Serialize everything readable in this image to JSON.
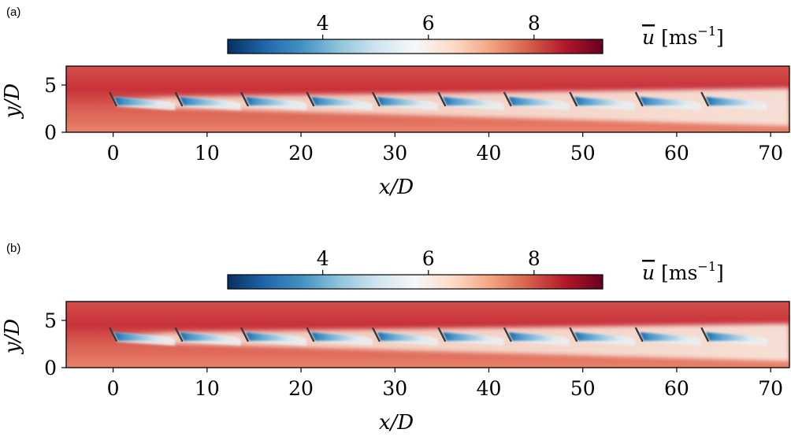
{
  "chart_data": [
    {
      "type": "heatmap",
      "panel_label": "(a)",
      "xlabel": "x/D",
      "ylabel": "y/D",
      "x_ticks": [
        0,
        10,
        20,
        30,
        40,
        50,
        60,
        70
      ],
      "y_ticks": [
        0,
        5
      ],
      "xlim": [
        -5,
        72
      ],
      "ylim": [
        0,
        7
      ],
      "colorbar": {
        "label_symbol": "u",
        "label_units": "[ms",
        "label_exp": "−1",
        "label_close": "]",
        "ticks": [
          4,
          6,
          8
        ],
        "range": [
          2.2,
          9.3
        ],
        "colormap": "RdBu_r"
      },
      "turbine_x": [
        0,
        7,
        14,
        21,
        28,
        35,
        42,
        49,
        56,
        63
      ],
      "turbine_y": 3.5,
      "wake_min_u": [
        2.6,
        3.0,
        3.0,
        3.0,
        3.0,
        3.0,
        3.0,
        3.0,
        3.0,
        3.0
      ]
    },
    {
      "type": "heatmap",
      "panel_label": "(b)",
      "xlabel": "x/D",
      "ylabel": "y/D",
      "x_ticks": [
        0,
        10,
        20,
        30,
        40,
        50,
        60,
        70
      ],
      "y_ticks": [
        0,
        5
      ],
      "xlim": [
        -5,
        72
      ],
      "ylim": [
        0,
        7
      ],
      "colorbar": {
        "label_symbol": "u",
        "label_units": "[ms",
        "label_exp": "−1",
        "label_close": "]",
        "ticks": [
          4,
          6,
          8
        ],
        "range": [
          2.2,
          9.3
        ],
        "colormap": "RdBu_r"
      },
      "turbine_x": [
        0,
        7,
        14,
        21,
        28,
        35,
        42,
        49,
        56,
        63
      ],
      "turbine_y": 3.5,
      "wake_min_u": [
        2.6,
        3.0,
        3.0,
        3.0,
        3.0,
        3.0,
        3.0,
        3.0,
        3.0,
        3.0
      ]
    }
  ]
}
